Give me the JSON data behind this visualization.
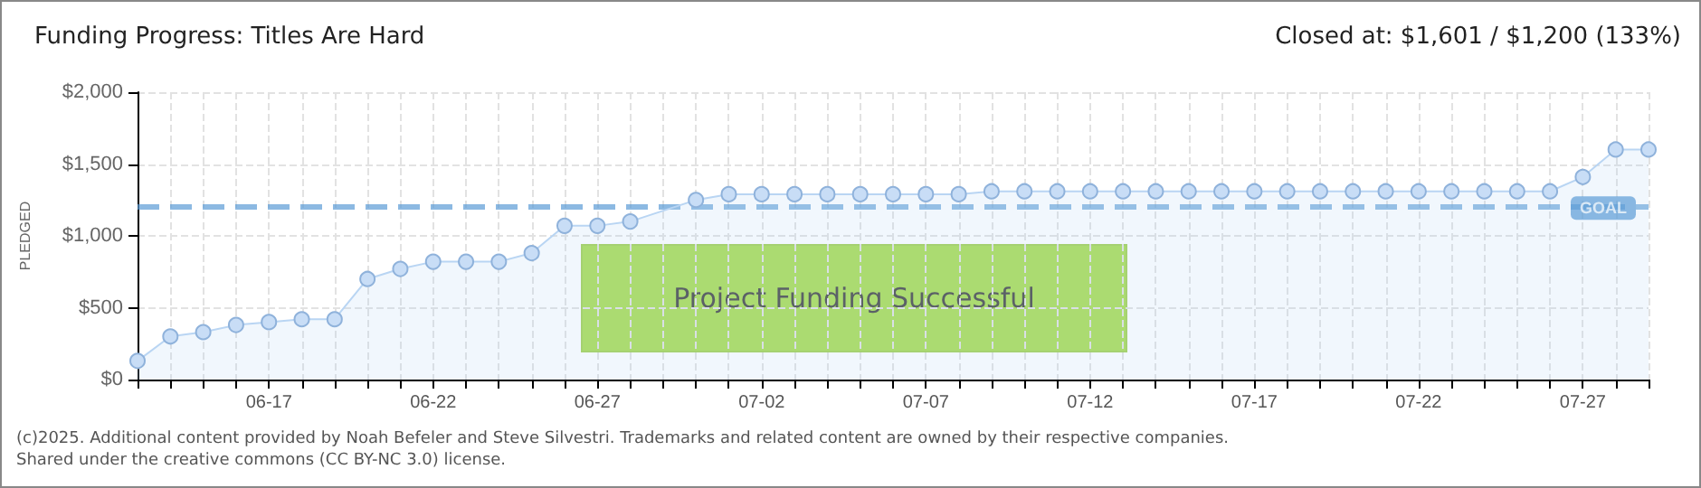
{
  "chart_data": {
    "type": "area",
    "title": "Funding Progress: Titles Are Hard",
    "subtitle": "Closed at: $1,601 / $1,200 (133%)",
    "ylabel": "PLEDGED",
    "categories": [
      null,
      null,
      null,
      null,
      "06-17",
      null,
      null,
      null,
      null,
      "06-22",
      null,
      null,
      null,
      null,
      "06-27",
      null,
      null,
      null,
      null,
      "07-02",
      null,
      null,
      null,
      null,
      "07-07",
      null,
      null,
      null,
      null,
      "07-12",
      null,
      null,
      null,
      null,
      "07-17",
      null,
      null,
      null,
      null,
      "07-22",
      null,
      null,
      null,
      null,
      "07-27",
      null,
      null
    ],
    "series": [
      {
        "color": "#b9d5f3",
        "values": [
          130,
          300,
          330,
          380,
          400,
          420,
          420,
          700,
          770,
          820,
          820,
          820,
          880,
          1070,
          1070,
          1100,
          null,
          1250,
          1290,
          1290,
          1290,
          1290,
          1290,
          1290,
          1290,
          1290,
          1310,
          1310,
          1310,
          1310,
          1310,
          1310,
          1310,
          1310,
          1310,
          1310,
          1310,
          1310,
          1310,
          1310,
          1310,
          1310,
          1310,
          1310,
          1410,
          1601,
          1601
        ]
      }
    ],
    "ylim": [
      0,
      2000
    ],
    "yticks": [
      {
        "value": 0,
        "label": "$0"
      },
      {
        "value": 500,
        "label": "$500"
      },
      {
        "value": 1000,
        "label": "$1,000"
      },
      {
        "value": 1500,
        "label": "$1,500"
      },
      {
        "value": 2000,
        "label": "$2,000"
      }
    ],
    "grid": true,
    "marker": "circle",
    "ref_lines": [
      {
        "axis": "y",
        "value": 1200,
        "label": "GOAL",
        "color": "#5b9bd5",
        "line_style": "dashed"
      }
    ],
    "annotations": [
      "Project Funding Successful",
      "(c)2025. Additional content provided by Noah Befeler and Steve Silvestri. Trademarks and related content are owned by their respective companies.",
      "Shared under the creative commons (CC BY-NC 3.0) license."
    ]
  }
}
